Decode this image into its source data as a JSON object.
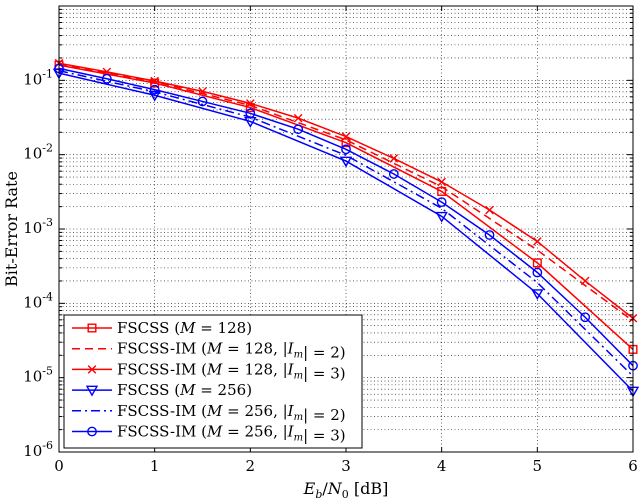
{
  "chart_data": {
    "type": "line",
    "xlabel": "E_b/N_0 [dB]",
    "ylabel": "Bit-Error Rate",
    "xlim": [
      0,
      6
    ],
    "ylim": [
      1e-06,
      1
    ],
    "yscale": "log",
    "grid": true,
    "legend_position": "bottom-left",
    "x_ticks": [
      "0",
      "1",
      "2",
      "3",
      "4",
      "5",
      "6"
    ],
    "y_ticks": [
      {
        "base": "10",
        "exp": "-6"
      },
      {
        "base": "10",
        "exp": "-5"
      },
      {
        "base": "10",
        "exp": "-4"
      },
      {
        "base": "10",
        "exp": "-3"
      },
      {
        "base": "10",
        "exp": "-2"
      },
      {
        "base": "10",
        "exp": "-1"
      }
    ],
    "series": [
      {
        "name": "FSCSS (M = 128)",
        "color": "#ff0000",
        "dash": "solid",
        "marker": "square",
        "x": [
          0,
          1,
          2,
          3,
          4,
          5,
          6
        ],
        "y": [
          0.16,
          0.092,
          0.043,
          0.0145,
          0.0032,
          0.00035,
          2.4e-05
        ]
      },
      {
        "name": "FSCSS-IM (M = 128, |I_m| = 2)",
        "color": "#ff0000",
        "dash": "dashed",
        "marker": "none",
        "x": [
          0,
          1,
          2,
          3,
          4,
          5,
          6
        ],
        "y": [
          0.165,
          0.096,
          0.046,
          0.0158,
          0.0037,
          0.00052,
          5.8e-05
        ]
      },
      {
        "name": "FSCSS-IM (M = 128, |I_m| = 3)",
        "color": "#ff0000",
        "dash": "solid",
        "marker": "x",
        "x": [
          0,
          0.5,
          1,
          1.5,
          2,
          2.5,
          3,
          3.5,
          4,
          4.5,
          5,
          5.5,
          6
        ],
        "y": [
          0.17,
          0.13,
          0.098,
          0.071,
          0.049,
          0.031,
          0.0175,
          0.0089,
          0.0043,
          0.0018,
          0.00068,
          0.0002,
          6.3e-05
        ]
      },
      {
        "name": "FSCSS (M = 256)",
        "color": "#0000ff",
        "dash": "solid",
        "marker": "triangle-down",
        "x": [
          0,
          1,
          2,
          3,
          4,
          5,
          6
        ],
        "y": [
          0.125,
          0.063,
          0.028,
          0.0082,
          0.00148,
          0.000135,
          6.6e-06
        ]
      },
      {
        "name": "FSCSS-IM (M = 256, |I_m| = 2)",
        "color": "#0000ff",
        "dash": "dashdot",
        "marker": "none",
        "x": [
          0,
          1,
          2,
          3,
          4,
          5,
          6
        ],
        "y": [
          0.135,
          0.07,
          0.032,
          0.0098,
          0.0019,
          0.00019,
          1.05e-05
        ]
      },
      {
        "name": "FSCSS-IM (M = 256, |I_m| = 3)",
        "color": "#0000ff",
        "dash": "solid",
        "marker": "circle",
        "x": [
          0,
          0.5,
          1,
          1.5,
          2,
          2.5,
          3,
          3.5,
          4,
          4.5,
          5,
          5.5,
          6
        ],
        "y": [
          0.145,
          0.105,
          0.075,
          0.052,
          0.036,
          0.022,
          0.0118,
          0.0055,
          0.0023,
          0.00083,
          0.00026,
          6.5e-05,
          1.45e-05
        ]
      }
    ]
  }
}
